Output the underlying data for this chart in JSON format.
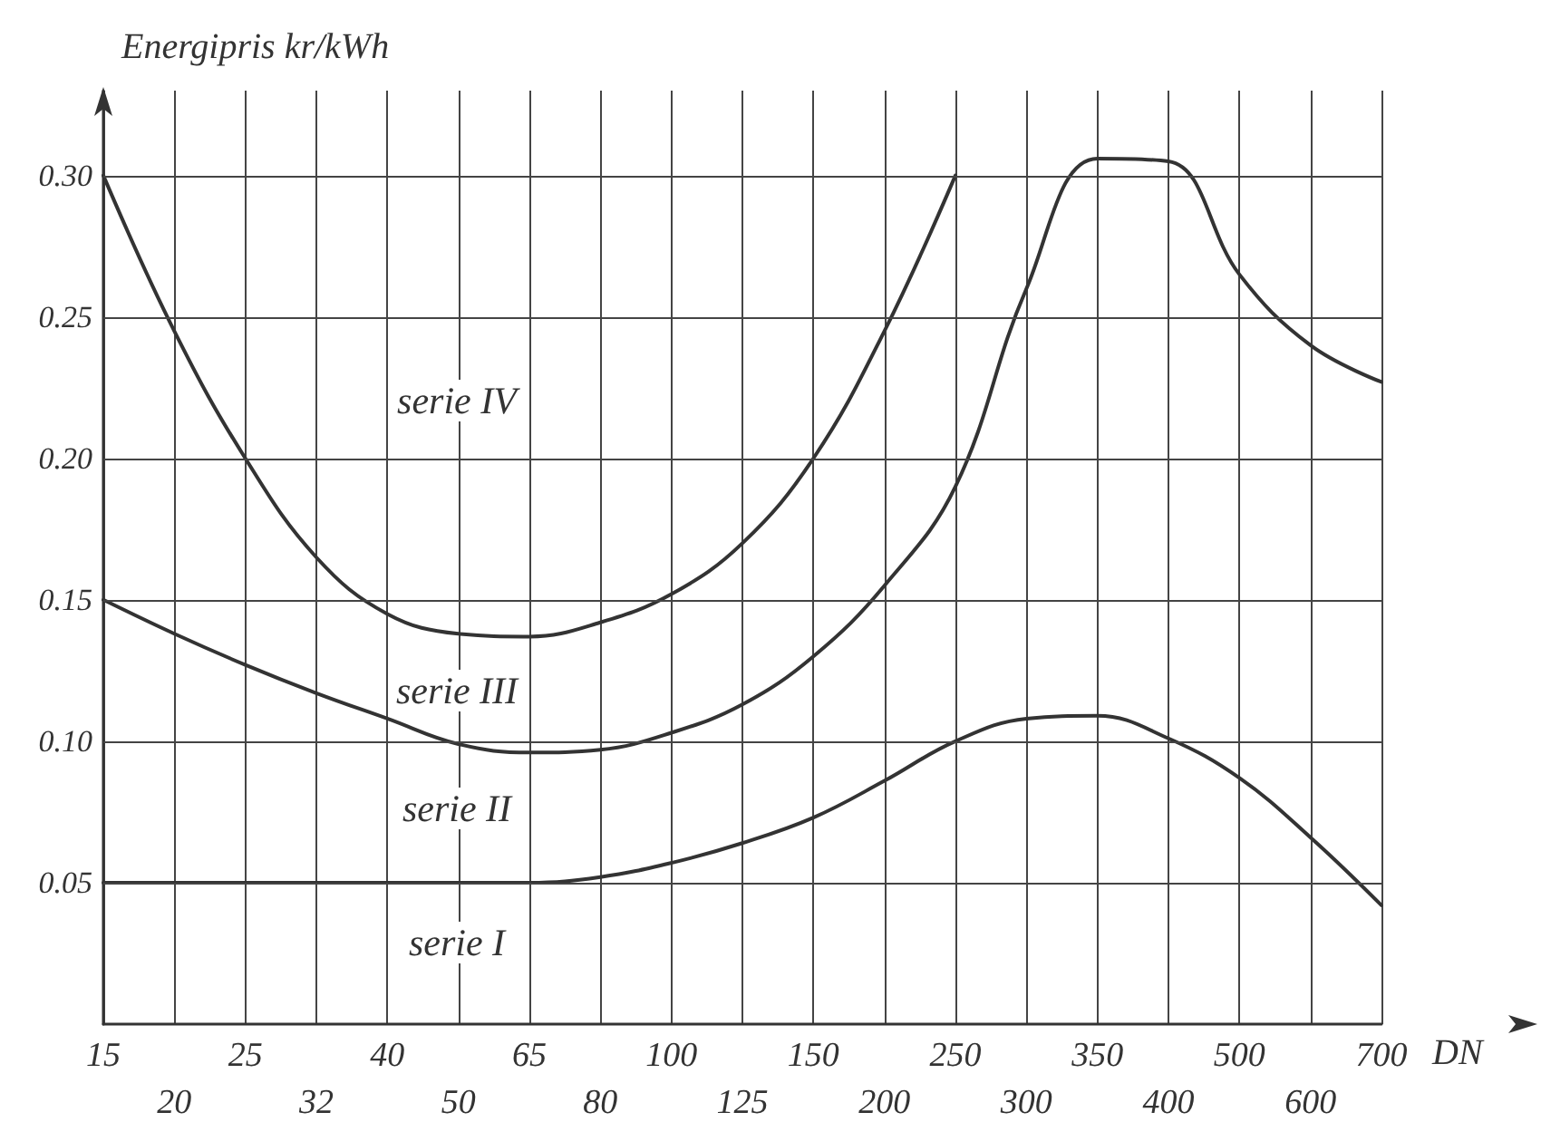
{
  "chart_data": {
    "type": "line",
    "ylabel": "Energipris kr/kWh",
    "xlabel": "DN",
    "categories": [
      "15",
      "20",
      "25",
      "32",
      "40",
      "50",
      "65",
      "80",
      "100",
      "125",
      "150",
      "200",
      "250",
      "300",
      "350",
      "400",
      "500",
      "600",
      "700"
    ],
    "series": [
      {
        "color": "#333333",
        "values": [
          0.05,
          0.05,
          0.05,
          0.05,
          0.05,
          0.05,
          0.05,
          0.052,
          0.057,
          0.064,
          0.073,
          0.086,
          0.1,
          0.108,
          0.109,
          0.101,
          0.087,
          0.066,
          0.042
        ]
      },
      {
        "color": "#333333",
        "values": [
          0.15,
          0.138,
          0.127,
          0.117,
          0.108,
          0.099,
          0.096,
          0.097,
          0.103,
          0.113,
          0.13,
          0.155,
          0.19,
          0.26,
          0.306,
          0.305,
          0.265,
          0.24,
          0.227
        ]
      },
      {
        "color": "#333333",
        "values": [
          0.3,
          0.245,
          0.2,
          0.165,
          0.145,
          0.138,
          0.137,
          0.142,
          0.152,
          0.17,
          0.2,
          0.245,
          0.3,
          null,
          null,
          null,
          null,
          null,
          null
        ]
      }
    ],
    "annotations": [
      "serie I",
      "serie II",
      "serie III",
      "serie IV"
    ],
    "ylim": [
      0,
      0.33
    ],
    "yticks": [
      {
        "value": 0.05,
        "label": "0.05"
      },
      {
        "value": 0.1,
        "label": "0.10"
      },
      {
        "value": 0.15,
        "label": "0.15"
      },
      {
        "value": 0.2,
        "label": "0.20"
      },
      {
        "value": 0.25,
        "label": "0.25"
      },
      {
        "value": 0.3,
        "label": "0.30"
      }
    ],
    "grid": true,
    "marker": "none",
    "line_style": "solid"
  }
}
